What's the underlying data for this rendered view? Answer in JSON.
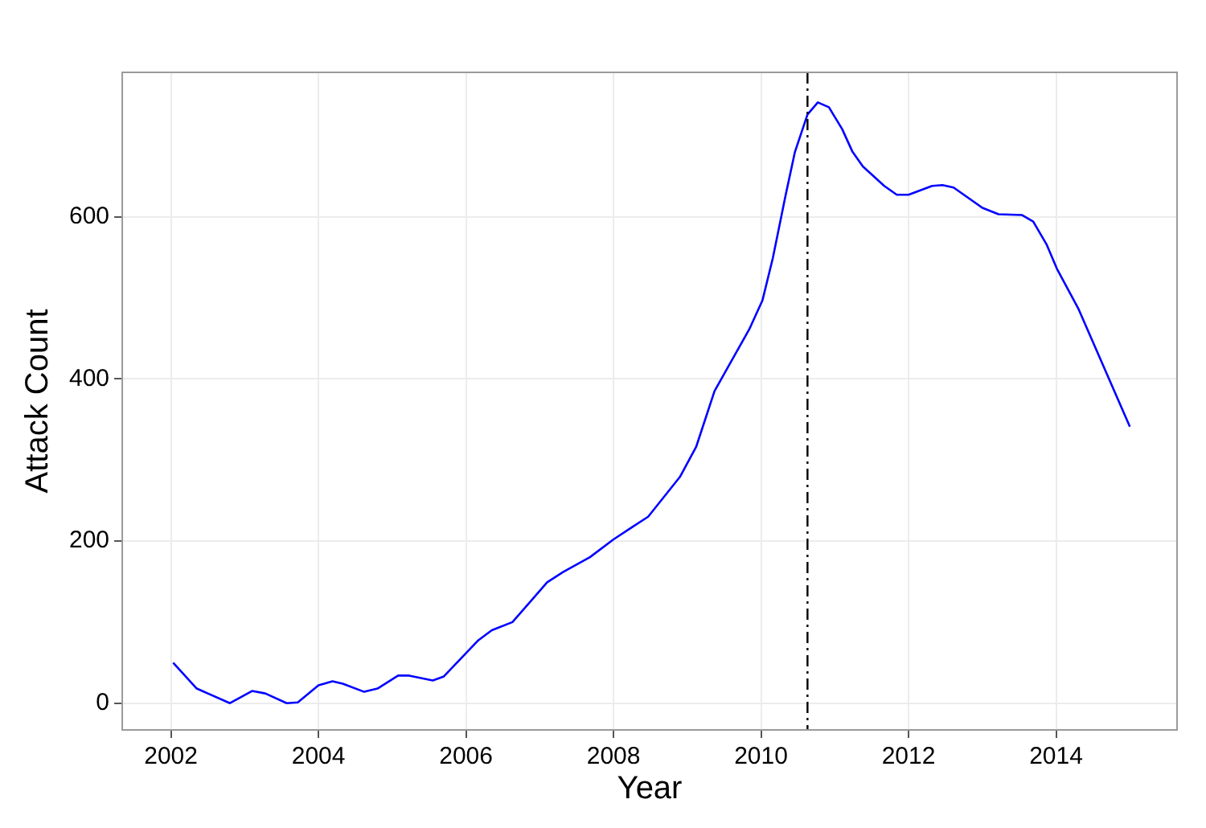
{
  "chart_data": {
    "type": "line",
    "xlabel": "Year",
    "ylabel": "Attack Count",
    "x": [
      2002.03,
      2002.35,
      2002.8,
      2003.1,
      2003.28,
      2003.57,
      2003.72,
      2004.0,
      2004.19,
      2004.33,
      2004.62,
      2004.8,
      2005.08,
      2005.23,
      2005.55,
      2005.7,
      2006.16,
      2006.35,
      2006.63,
      2006.88,
      2007.1,
      2007.32,
      2007.68,
      2008.0,
      2008.25,
      2008.47,
      2008.9,
      2009.12,
      2009.37,
      2009.84,
      2010.02,
      2010.16,
      2010.33,
      2010.46,
      2010.63,
      2010.77,
      2010.92,
      2011.1,
      2011.24,
      2011.38,
      2011.67,
      2011.84,
      2012.0,
      2012.32,
      2012.46,
      2012.61,
      2013.0,
      2013.22,
      2013.54,
      2013.69,
      2013.87,
      2014.01,
      2014.3,
      2015.0
    ],
    "series": [
      {
        "color": "#0000ff",
        "values": [
          50,
          18,
          0,
          15,
          12,
          0,
          1,
          22,
          27,
          24,
          14,
          18,
          34,
          34,
          28,
          33,
          77,
          90,
          100,
          126,
          149,
          162,
          180,
          202,
          217,
          230,
          279,
          316,
          385,
          461,
          497,
          549,
          625,
          680,
          726,
          741,
          735,
          708,
          680,
          662,
          638,
          627,
          627,
          638,
          639,
          636,
          611,
          603,
          602,
          594,
          566,
          536,
          487,
          341
        ]
      }
    ],
    "xlim": [
      2001.34,
      2015.64
    ],
    "xticks": [
      2002,
      2004,
      2006,
      2008,
      2010,
      2012,
      2014
    ],
    "ylim": [
      -33,
      778
    ],
    "yticks": [
      0,
      200,
      400,
      600
    ],
    "ref_lines": [
      {
        "axis": "x",
        "value": 2010.63,
        "color": "#000000",
        "line_style": "dashdot"
      }
    ],
    "grid": true,
    "legend": false,
    "marker": "none",
    "line_style": "solid"
  }
}
